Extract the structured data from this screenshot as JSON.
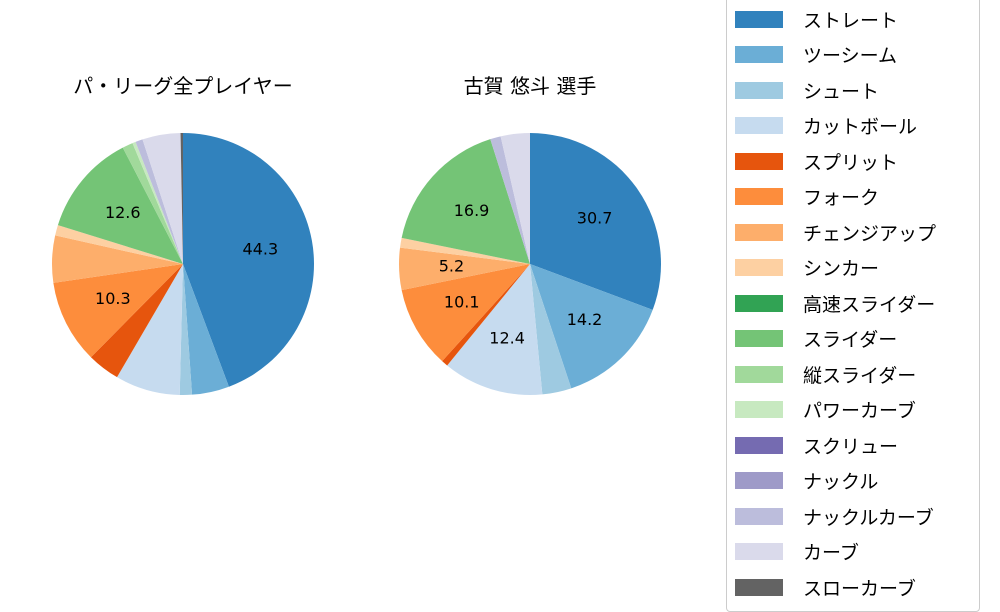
{
  "chart_data": [
    {
      "type": "pie",
      "title": "パ・リーグ全プレイヤー",
      "categories": [
        "ストレート",
        "ツーシーム",
        "シュート",
        "カットボール",
        "スプリット",
        "フォーク",
        "チェンジアップ",
        "シンカー",
        "高速スライダー",
        "スライダー",
        "縦スライダー",
        "パワーカーブ",
        "スクリュー",
        "ナックル",
        "ナックルカーブ",
        "カーブ",
        "スローカーブ"
      ],
      "values": [
        44.3,
        4.6,
        1.5,
        8.0,
        4.0,
        10.3,
        5.8,
        1.3,
        0,
        12.6,
        1.3,
        0.4,
        0,
        0,
        0.9,
        4.7,
        0.3
      ],
      "labels_shown": [
        "44.3",
        "10.3",
        "12.6"
      ],
      "start_angle": "top, clockwise"
    },
    {
      "type": "pie",
      "title": "古賀 悠斗  選手",
      "categories": [
        "ストレート",
        "ツーシーム",
        "シュート",
        "カットボール",
        "スプリット",
        "フォーク",
        "チェンジアップ",
        "シンカー",
        "高速スライダー",
        "スライダー",
        "縦スライダー",
        "パワーカーブ",
        "スクリュー",
        "ナックル",
        "ナックルカーブ",
        "カーブ",
        "スローカーブ"
      ],
      "values": [
        30.7,
        14.2,
        3.6,
        12.4,
        0.8,
        10.1,
        5.2,
        1.2,
        0,
        16.9,
        0,
        0,
        0,
        0,
        1.3,
        3.6,
        0
      ],
      "labels_shown": [
        "30.7",
        "14.2",
        "12.4",
        "10.1",
        "5.2",
        "16.9"
      ],
      "start_angle": "top, clockwise"
    }
  ],
  "titles": {
    "left": "パ・リーグ全プレイヤー",
    "right": "古賀 悠斗  選手"
  },
  "legend": [
    {
      "label": "ストレート",
      "color": "#3182bd"
    },
    {
      "label": "ツーシーム",
      "color": "#6baed6"
    },
    {
      "label": "シュート",
      "color": "#9ecae1"
    },
    {
      "label": "カットボール",
      "color": "#c6dbef"
    },
    {
      "label": "スプリット",
      "color": "#e6550d"
    },
    {
      "label": "フォーク",
      "color": "#fd8d3c"
    },
    {
      "label": "チェンジアップ",
      "color": "#fdae6b"
    },
    {
      "label": "シンカー",
      "color": "#fdd0a2"
    },
    {
      "label": "高速スライダー",
      "color": "#31a354"
    },
    {
      "label": "スライダー",
      "color": "#74c476"
    },
    {
      "label": "縦スライダー",
      "color": "#a1d99b"
    },
    {
      "label": "パワーカーブ",
      "color": "#c7e9c0"
    },
    {
      "label": "スクリュー",
      "color": "#756bb1"
    },
    {
      "label": "ナックル",
      "color": "#9e9ac8"
    },
    {
      "label": "ナックルカーブ",
      "color": "#bcbddc"
    },
    {
      "label": "カーブ",
      "color": "#dadaeb"
    },
    {
      "label": "スローカーブ",
      "color": "#636363"
    }
  ]
}
